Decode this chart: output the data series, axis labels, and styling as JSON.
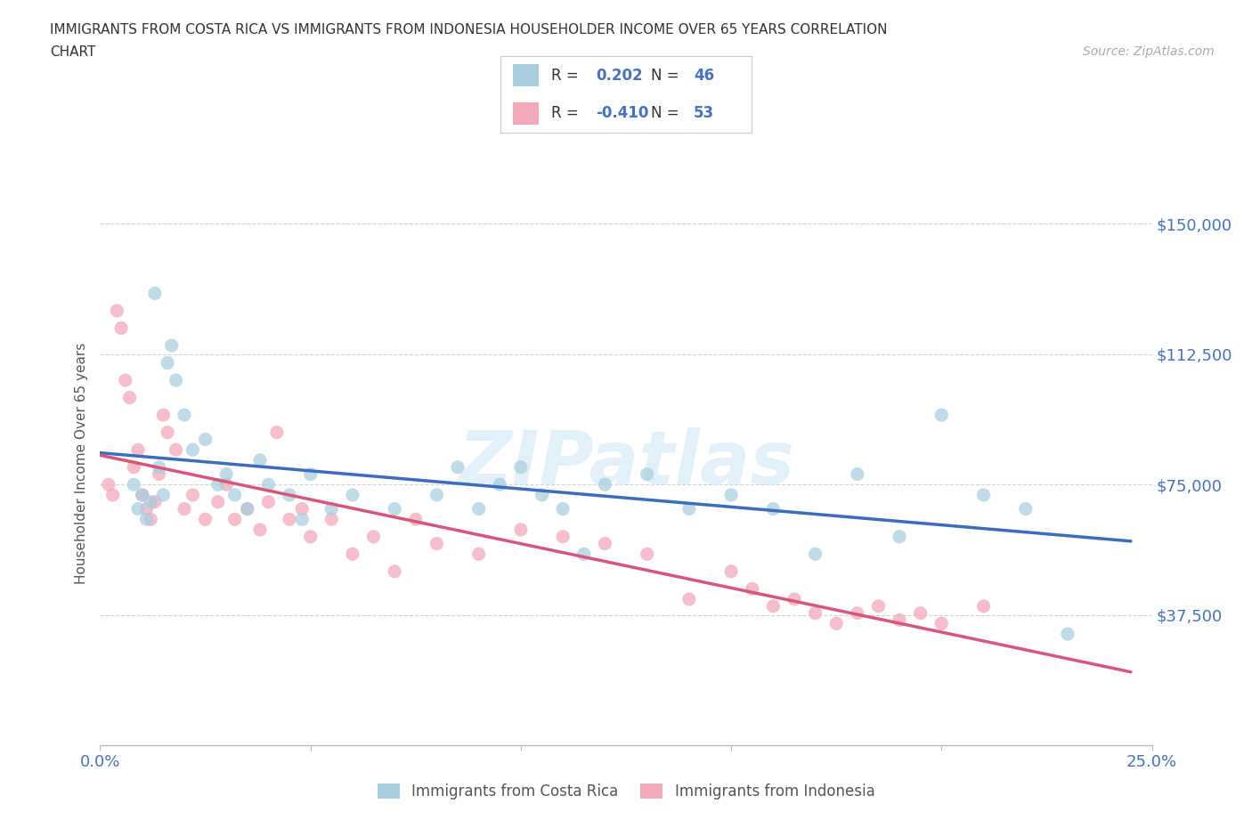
{
  "title_line1": "IMMIGRANTS FROM COSTA RICA VS IMMIGRANTS FROM INDONESIA HOUSEHOLDER INCOME OVER 65 YEARS CORRELATION",
  "title_line2": "CHART",
  "source": "Source: ZipAtlas.com",
  "ylabel": "Householder Income Over 65 years",
  "xlim": [
    0.0,
    0.25
  ],
  "ylim": [
    0,
    162000
  ],
  "ytick_vals": [
    0,
    37500,
    75000,
    112500,
    150000
  ],
  "ytick_labels": [
    "",
    "$37,500",
    "$75,000",
    "$112,500",
    "$150,000"
  ],
  "xtick_vals": [
    0.0,
    0.05,
    0.1,
    0.15,
    0.2,
    0.25
  ],
  "xtick_labels": [
    "0.0%",
    "",
    "",
    "",
    "",
    "25.0%"
  ],
  "color_cr": "#a8cfe0",
  "color_id": "#f4a9bb",
  "line_color_cr": "#3b6dbf",
  "line_color_id": "#d9567a",
  "R_cr": 0.202,
  "N_cr": 46,
  "R_id": -0.41,
  "N_id": 53,
  "watermark": "ZIPatlas",
  "axis_color": "#4472c4",
  "tick_color": "#4472c4",
  "grid_color": "#c8c8c8",
  "legend_label_cr": "Immigrants from Costa Rica",
  "legend_label_id": "Immigrants from Indonesia",
  "cr_x": [
    0.008,
    0.009,
    0.01,
    0.011,
    0.012,
    0.013,
    0.014,
    0.015,
    0.016,
    0.017,
    0.018,
    0.02,
    0.022,
    0.025,
    0.028,
    0.03,
    0.032,
    0.035,
    0.038,
    0.04,
    0.045,
    0.048,
    0.05,
    0.055,
    0.06,
    0.07,
    0.08,
    0.085,
    0.09,
    0.095,
    0.1,
    0.105,
    0.11,
    0.115,
    0.12,
    0.13,
    0.14,
    0.15,
    0.16,
    0.17,
    0.18,
    0.19,
    0.2,
    0.21,
    0.22,
    0.23
  ],
  "cr_y": [
    75000,
    68000,
    72000,
    65000,
    70000,
    130000,
    80000,
    72000,
    110000,
    115000,
    105000,
    95000,
    85000,
    88000,
    75000,
    78000,
    72000,
    68000,
    82000,
    75000,
    72000,
    65000,
    78000,
    68000,
    72000,
    68000,
    72000,
    80000,
    68000,
    75000,
    80000,
    72000,
    68000,
    55000,
    75000,
    78000,
    68000,
    72000,
    68000,
    55000,
    78000,
    60000,
    95000,
    72000,
    68000,
    32000
  ],
  "id_x": [
    0.002,
    0.003,
    0.004,
    0.005,
    0.006,
    0.007,
    0.008,
    0.009,
    0.01,
    0.011,
    0.012,
    0.013,
    0.014,
    0.015,
    0.016,
    0.018,
    0.02,
    0.022,
    0.025,
    0.028,
    0.03,
    0.032,
    0.035,
    0.038,
    0.04,
    0.042,
    0.045,
    0.048,
    0.05,
    0.055,
    0.06,
    0.065,
    0.07,
    0.075,
    0.08,
    0.09,
    0.1,
    0.11,
    0.12,
    0.13,
    0.14,
    0.15,
    0.155,
    0.16,
    0.165,
    0.17,
    0.175,
    0.18,
    0.185,
    0.19,
    0.195,
    0.2,
    0.21
  ],
  "id_y": [
    75000,
    72000,
    125000,
    120000,
    105000,
    100000,
    80000,
    85000,
    72000,
    68000,
    65000,
    70000,
    78000,
    95000,
    90000,
    85000,
    68000,
    72000,
    65000,
    70000,
    75000,
    65000,
    68000,
    62000,
    70000,
    90000,
    65000,
    68000,
    60000,
    65000,
    55000,
    60000,
    50000,
    65000,
    58000,
    55000,
    62000,
    60000,
    58000,
    55000,
    42000,
    50000,
    45000,
    40000,
    42000,
    38000,
    35000,
    38000,
    40000,
    36000,
    38000,
    35000,
    40000
  ]
}
